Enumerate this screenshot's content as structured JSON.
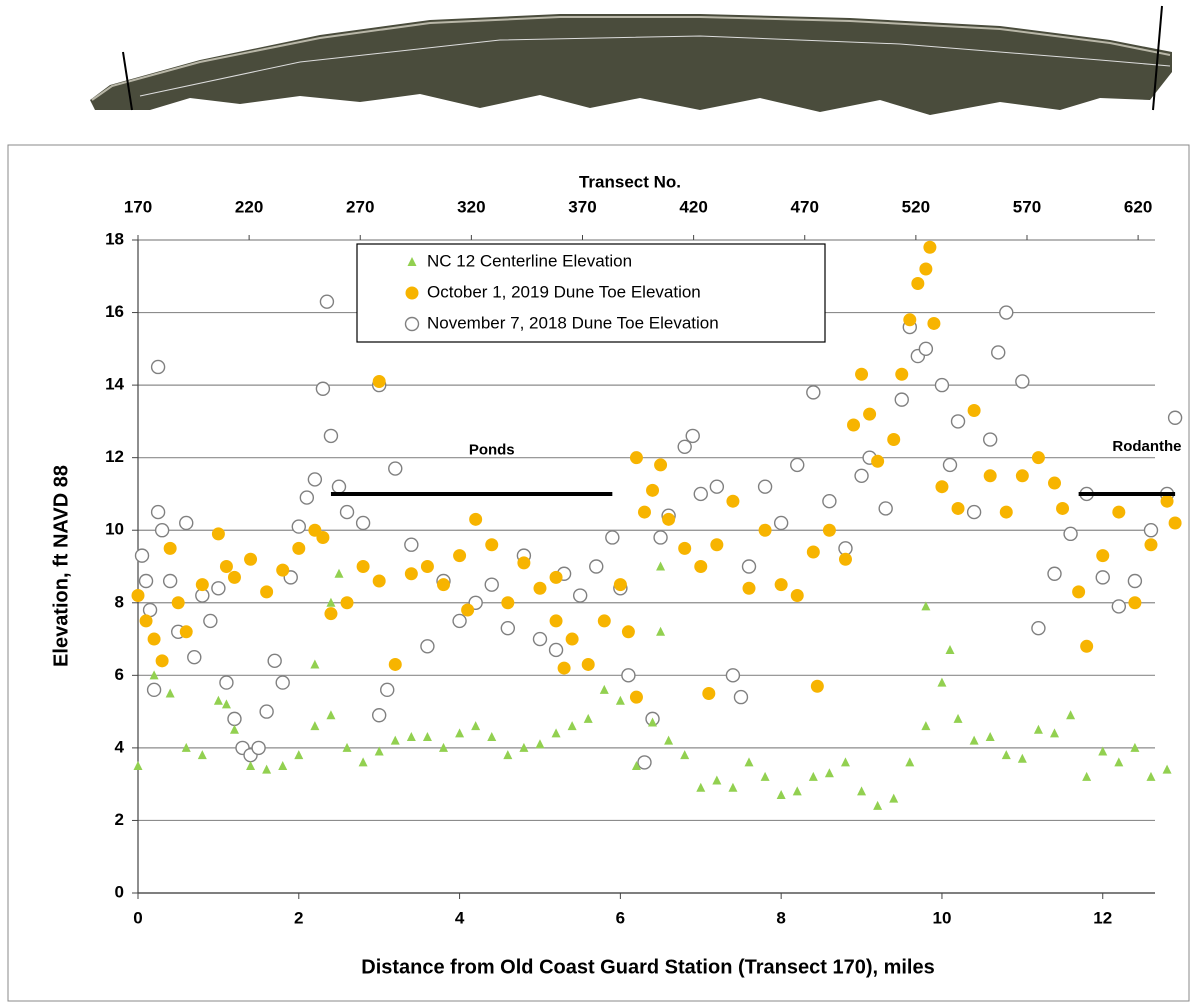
{
  "chart_data": {
    "type": "scatter",
    "xlabel": "Distance from Old Coast Guard Station (Transect 170), miles",
    "ylabel": "Elevation, ft NAVD 88",
    "x2label": "Transect No.",
    "xlim": [
      0,
      12.65
    ],
    "xticks": [
      0,
      2,
      4,
      6,
      8,
      10,
      12
    ],
    "x2lim": [
      170,
      627.6
    ],
    "x2ticks": [
      170,
      220,
      270,
      320,
      370,
      420,
      470,
      520,
      570,
      620
    ],
    "ylim": [
      0,
      18
    ],
    "yticks": [
      0,
      2,
      4,
      6,
      8,
      10,
      12,
      14,
      16,
      18
    ],
    "grid": true,
    "legend_position": "top",
    "series": [
      {
        "name": "NC 12 Centerline Elevation",
        "color": "#92d050",
        "marker": "triangle",
        "x": [
          0,
          0.2,
          0.4,
          0.6,
          0.8,
          1.0,
          1.2,
          1.4,
          1.6,
          1.8,
          2.0,
          2.2,
          2.4,
          2.6,
          2.8,
          3.0,
          3.2,
          3.4,
          3.6,
          3.8,
          4.0,
          4.2,
          4.4,
          4.6,
          4.8,
          5.0,
          5.2,
          5.4,
          5.6,
          5.8,
          6.0,
          6.2,
          6.4,
          6.6,
          6.8,
          7.0,
          7.2,
          7.4,
          7.6,
          7.8,
          8.0,
          8.2,
          8.4,
          8.6,
          8.8,
          9.0,
          9.2,
          9.4,
          9.6,
          9.8,
          10.0,
          10.2,
          10.4,
          10.6,
          10.8,
          11.0,
          11.2,
          11.4,
          11.6,
          11.8,
          12.0,
          12.2,
          12.4,
          12.6,
          12.8,
          2.4,
          2.5,
          2.2,
          6.5,
          6.5,
          9.8,
          10.1,
          1.1
        ],
        "values": [
          3.5,
          6.0,
          5.5,
          4.0,
          3.8,
          5.3,
          4.5,
          3.5,
          3.4,
          3.5,
          3.8,
          4.6,
          4.9,
          4.0,
          3.6,
          3.9,
          4.2,
          4.3,
          4.3,
          4.0,
          4.4,
          4.6,
          4.3,
          3.8,
          4.0,
          4.1,
          4.4,
          4.6,
          4.8,
          5.6,
          5.3,
          3.5,
          4.7,
          4.2,
          3.8,
          2.9,
          3.1,
          2.9,
          3.6,
          3.2,
          2.7,
          2.8,
          3.2,
          3.3,
          3.6,
          2.8,
          2.4,
          2.6,
          3.6,
          4.6,
          5.8,
          4.8,
          4.2,
          4.3,
          3.8,
          3.7,
          4.5,
          4.4,
          4.9,
          3.2,
          3.9,
          3.6,
          4.0,
          3.2,
          3.4,
          8.0,
          8.8,
          6.3,
          9.0,
          7.2,
          7.9,
          6.7,
          5.2
        ]
      },
      {
        "name": "October 1, 2019 Dune Toe Elevation",
        "color": "#f7b400",
        "marker": "filled-circle",
        "x": [
          0.0,
          0.1,
          0.2,
          0.3,
          0.4,
          0.5,
          0.6,
          0.8,
          1.0,
          1.1,
          1.2,
          1.4,
          1.6,
          1.8,
          2.0,
          2.2,
          2.3,
          2.4,
          2.6,
          2.8,
          3.0,
          3.2,
          3.4,
          3.6,
          3.8,
          4.0,
          4.2,
          4.4,
          4.6,
          4.8,
          5.0,
          5.2,
          5.3,
          5.4,
          5.6,
          5.8,
          6.0,
          6.1,
          6.2,
          6.3,
          6.4,
          6.5,
          6.6,
          6.8,
          7.0,
          7.2,
          7.4,
          7.6,
          7.8,
          8.0,
          8.2,
          8.4,
          8.6,
          8.8,
          8.9,
          9.0,
          9.1,
          9.2,
          9.4,
          9.5,
          9.6,
          9.7,
          9.8,
          9.85,
          9.9,
          10.0,
          10.2,
          10.4,
          10.6,
          10.8,
          11.0,
          11.2,
          11.4,
          11.5,
          11.7,
          11.8,
          12.0,
          12.2,
          12.4,
          12.6,
          12.8,
          12.9,
          3.0,
          7.1,
          8.45,
          6.2,
          4.1,
          5.2
        ],
        "values": [
          8.2,
          7.5,
          7.0,
          6.4,
          9.5,
          8.0,
          7.2,
          8.5,
          9.9,
          9.0,
          8.7,
          9.2,
          8.3,
          8.9,
          9.5,
          10.0,
          9.8,
          7.7,
          8.0,
          9.0,
          8.6,
          6.3,
          8.8,
          9.0,
          8.5,
          9.3,
          10.3,
          9.6,
          8.0,
          9.1,
          8.4,
          8.7,
          6.2,
          7.0,
          6.3,
          7.5,
          8.5,
          7.2,
          12.0,
          10.5,
          11.1,
          11.8,
          10.3,
          9.5,
          9.0,
          9.6,
          10.8,
          8.4,
          10.0,
          8.5,
          8.2,
          9.4,
          10.0,
          9.2,
          12.9,
          14.3,
          13.2,
          11.9,
          12.5,
          14.3,
          15.8,
          16.8,
          17.2,
          17.8,
          15.7,
          11.2,
          10.6,
          13.3,
          11.5,
          10.5,
          11.5,
          12.0,
          11.3,
          10.6,
          8.3,
          6.8,
          9.3,
          10.5,
          8.0,
          9.6,
          10.8,
          10.2,
          14.1,
          5.5,
          5.7,
          5.4,
          7.8,
          7.5
        ]
      },
      {
        "name": "November 7, 2018 Dune Toe Elevation",
        "color": "#808080",
        "marker": "open-circle",
        "x": [
          0.05,
          0.1,
          0.15,
          0.2,
          0.25,
          0.3,
          0.4,
          0.5,
          0.6,
          0.7,
          0.8,
          0.9,
          1.0,
          1.1,
          1.2,
          1.3,
          1.4,
          1.5,
          1.6,
          1.7,
          1.8,
          1.9,
          2.0,
          2.1,
          2.2,
          2.3,
          2.35,
          2.4,
          2.5,
          2.6,
          2.8,
          3.0,
          3.0,
          3.1,
          3.2,
          3.4,
          3.6,
          3.8,
          4.0,
          4.2,
          4.4,
          4.6,
          4.8,
          5.0,
          5.2,
          5.3,
          5.5,
          5.7,
          5.9,
          6.0,
          6.1,
          6.3,
          6.4,
          6.5,
          6.6,
          6.8,
          6.9,
          7.0,
          7.2,
          7.4,
          7.5,
          7.6,
          7.8,
          8.0,
          8.2,
          8.4,
          8.6,
          8.8,
          9.0,
          9.1,
          9.3,
          9.5,
          9.6,
          9.7,
          9.8,
          10.0,
          10.1,
          10.2,
          10.4,
          10.6,
          10.7,
          10.8,
          11.0,
          11.2,
          11.4,
          11.6,
          11.8,
          12.0,
          12.2,
          12.4,
          12.6,
          12.8,
          12.9,
          0.25
        ],
        "values": [
          9.3,
          8.6,
          7.8,
          5.6,
          10.5,
          10.0,
          8.6,
          7.2,
          10.2,
          6.5,
          8.2,
          7.5,
          8.4,
          5.8,
          4.8,
          4.0,
          3.8,
          4.0,
          5.0,
          6.4,
          5.8,
          8.7,
          10.1,
          10.9,
          11.4,
          13.9,
          16.3,
          12.6,
          11.2,
          10.5,
          10.2,
          14.0,
          4.9,
          5.6,
          11.7,
          9.6,
          6.8,
          8.6,
          7.5,
          8.0,
          8.5,
          7.3,
          9.3,
          7.0,
          6.7,
          8.8,
          8.2,
          9.0,
          9.8,
          8.4,
          6.0,
          3.6,
          4.8,
          9.8,
          10.4,
          12.3,
          12.6,
          11.0,
          11.2,
          6.0,
          5.4,
          9.0,
          11.2,
          10.2,
          11.8,
          13.8,
          10.8,
          9.5,
          11.5,
          12.0,
          10.6,
          13.6,
          15.6,
          14.8,
          15.0,
          14.0,
          11.8,
          13.0,
          10.5,
          12.5,
          14.9,
          16.0,
          14.1,
          7.3,
          8.8,
          9.9,
          11.0,
          8.7,
          7.9,
          8.6,
          10.0,
          11.0,
          13.1,
          14.5
        ]
      }
    ],
    "annotations": [
      {
        "text": "Ponds",
        "x": 4.4,
        "y": 12.2
      },
      {
        "text": "Rodanthe",
        "x": 12.55,
        "y": 12.3
      }
    ],
    "segments": [
      {
        "x": [
          2.4,
          5.9
        ],
        "y": 11
      },
      {
        "x": [
          11.7,
          12.9
        ],
        "y": 11
      }
    ]
  }
}
